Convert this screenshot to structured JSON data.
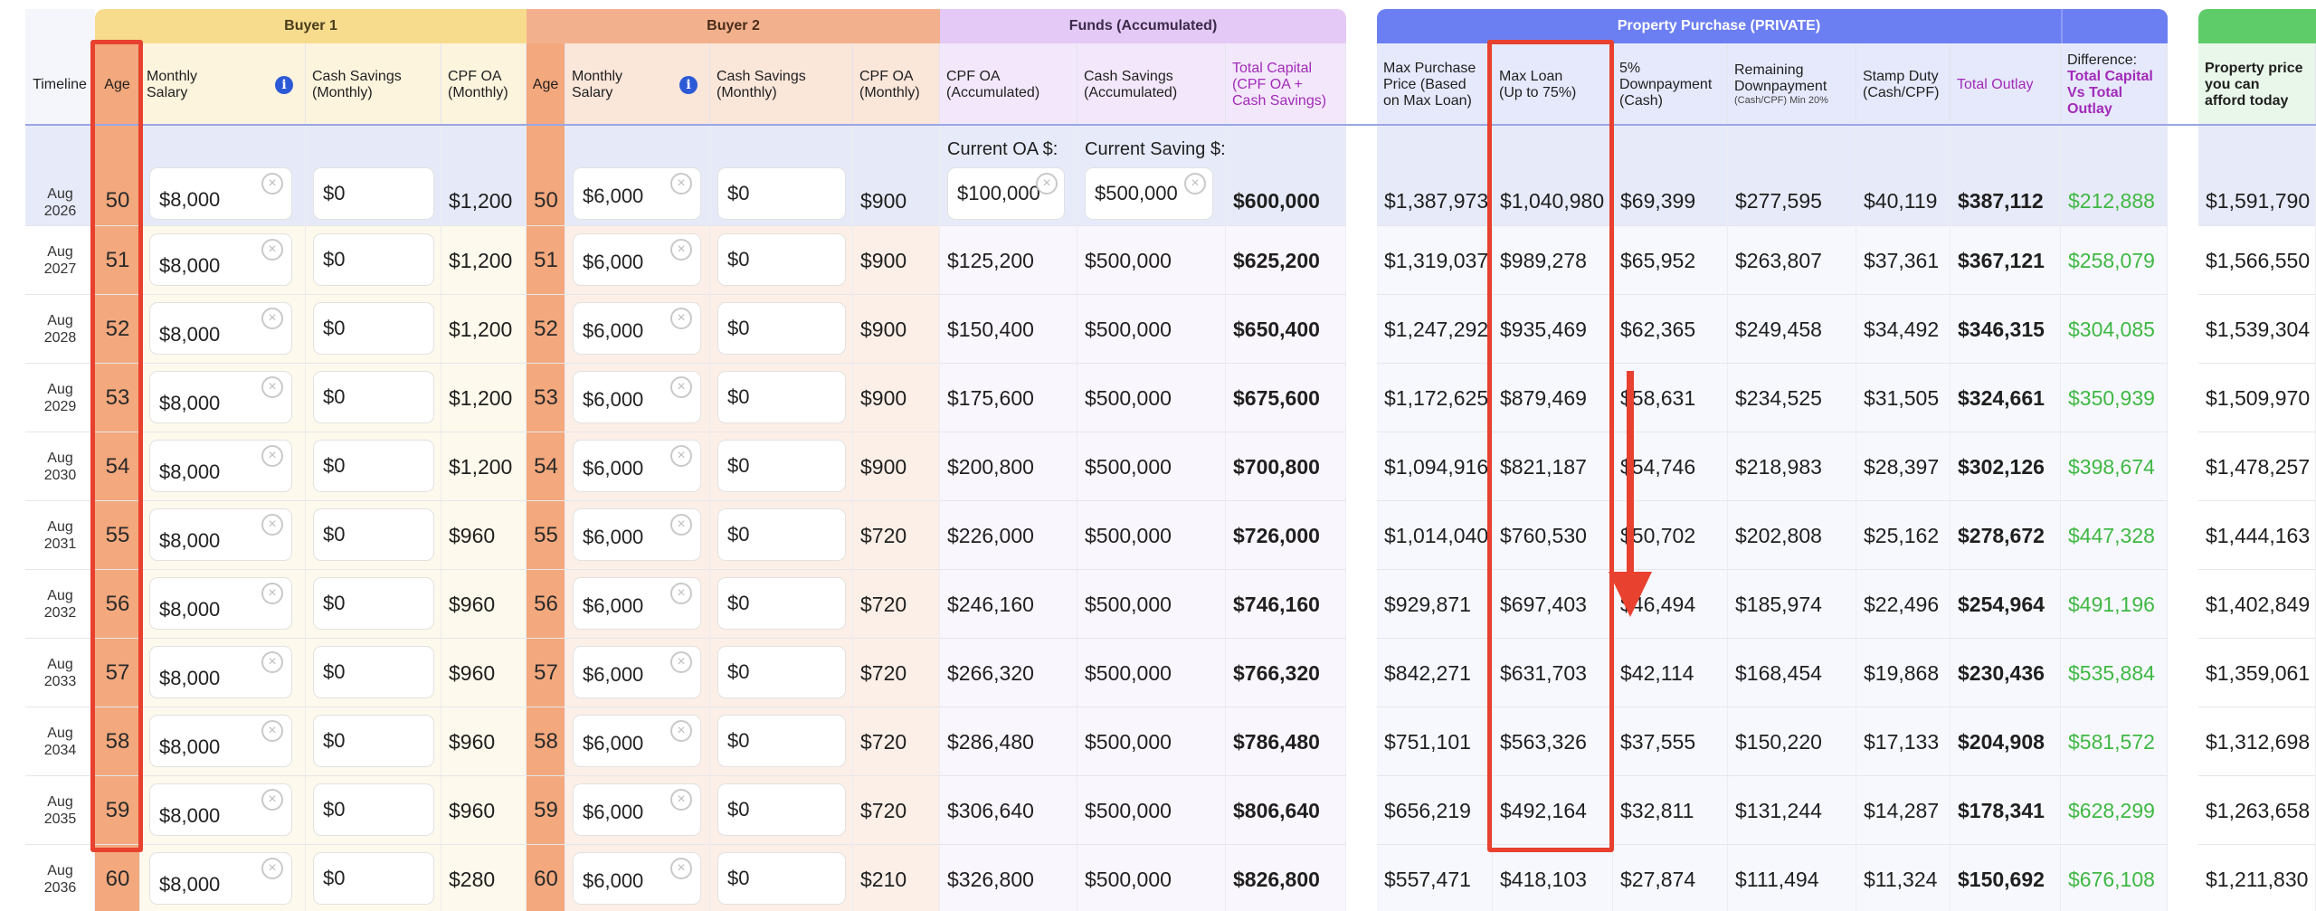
{
  "group_headers": {
    "buyer1": "Buyer 1",
    "buyer2": "Buyer 2",
    "funds": "Funds (Accumulated)",
    "property": "Property Purchase (PRIVATE)",
    "afford": ""
  },
  "column_headers": {
    "timeline": "Timeline",
    "age1": "Age",
    "salary1_a": "Monthly",
    "salary1_b": "Salary",
    "cash1_a": "Cash Savings",
    "cash1_b": "(Monthly)",
    "cpf1_a": "CPF OA",
    "cpf1_b": "(Monthly)",
    "age2": "Age",
    "salary2_a": "Monthly",
    "salary2_b": "Salary",
    "cash2_a": "Cash Savings",
    "cash2_b": "(Monthly)",
    "cpf2_a": "CPF OA",
    "cpf2_b": "(Monthly)",
    "cpfacc_a": "CPF OA",
    "cpfacc_b": "(Accumulated)",
    "cashacc_a": "Cash Savings",
    "cashacc_b": "(Accumulated)",
    "total_a": "Total Capital",
    "total_b": "(CPF OA +",
    "total_c": "Cash Savings)",
    "maxprice_a": "Max Purchase",
    "maxprice_b": "Price (Based",
    "maxprice_c": "on Max Loan)",
    "maxloan_a": "Max Loan",
    "maxloan_b": "(Up to 75%)",
    "down5_a": "5%",
    "down5_b": "Downpayment",
    "down5_c": "(Cash)",
    "remdown_a": "Remaining",
    "remdown_b": "Downpayment",
    "remdown_c": "(Cash/CPF) Min 20%",
    "stamp_a": "Stamp Duty",
    "stamp_b": "(Cash/CPF)",
    "outlay": "Total Outlay",
    "diff_a": "Difference:",
    "diff_b": "Total Capital",
    "diff_c": "Vs Total",
    "diff_d": "Outlay",
    "afford_a": "Property price",
    "afford_b": "you can",
    "afford_c": "afford today"
  },
  "captions": {
    "current_oa": "Current OA $:",
    "current_saving": "Current Saving $:"
  },
  "rows": [
    {
      "month": "Aug",
      "year": "2026",
      "age1": "50",
      "salary1": "$8,000",
      "cash1": "$0",
      "cpf1": "$1,200",
      "age2": "50",
      "salary2": "$6,000",
      "cash2": "$0",
      "cpf2": "$900",
      "cpfacc": "$100,000",
      "cashacc": "$500,000",
      "total": "$600,000",
      "maxprice": "$1,387,973",
      "maxloan": "$1,040,980",
      "down5": "$69,399",
      "remdown": "$277,595",
      "stamp": "$40,119",
      "outlay": "$387,112",
      "diff": "$212,888",
      "afford": "$1,591,790"
    },
    {
      "month": "Aug",
      "year": "2027",
      "age1": "51",
      "salary1": "$8,000",
      "cash1": "$0",
      "cpf1": "$1,200",
      "age2": "51",
      "salary2": "$6,000",
      "cash2": "$0",
      "cpf2": "$900",
      "cpfacc": "$125,200",
      "cashacc": "$500,000",
      "total": "$625,200",
      "maxprice": "$1,319,037",
      "maxloan": "$989,278",
      "down5": "$65,952",
      "remdown": "$263,807",
      "stamp": "$37,361",
      "outlay": "$367,121",
      "diff": "$258,079",
      "afford": "$1,566,550"
    },
    {
      "month": "Aug",
      "year": "2028",
      "age1": "52",
      "salary1": "$8,000",
      "cash1": "$0",
      "cpf1": "$1,200",
      "age2": "52",
      "salary2": "$6,000",
      "cash2": "$0",
      "cpf2": "$900",
      "cpfacc": "$150,400",
      "cashacc": "$500,000",
      "total": "$650,400",
      "maxprice": "$1,247,292",
      "maxloan": "$935,469",
      "down5": "$62,365",
      "remdown": "$249,458",
      "stamp": "$34,492",
      "outlay": "$346,315",
      "diff": "$304,085",
      "afford": "$1,539,304"
    },
    {
      "month": "Aug",
      "year": "2029",
      "age1": "53",
      "salary1": "$8,000",
      "cash1": "$0",
      "cpf1": "$1,200",
      "age2": "53",
      "salary2": "$6,000",
      "cash2": "$0",
      "cpf2": "$900",
      "cpfacc": "$175,600",
      "cashacc": "$500,000",
      "total": "$675,600",
      "maxprice": "$1,172,625",
      "maxloan": "$879,469",
      "down5": "$58,631",
      "remdown": "$234,525",
      "stamp": "$31,505",
      "outlay": "$324,661",
      "diff": "$350,939",
      "afford": "$1,509,970"
    },
    {
      "month": "Aug",
      "year": "2030",
      "age1": "54",
      "salary1": "$8,000",
      "cash1": "$0",
      "cpf1": "$1,200",
      "age2": "54",
      "salary2": "$6,000",
      "cash2": "$0",
      "cpf2": "$900",
      "cpfacc": "$200,800",
      "cashacc": "$500,000",
      "total": "$700,800",
      "maxprice": "$1,094,916",
      "maxloan": "$821,187",
      "down5": "$54,746",
      "remdown": "$218,983",
      "stamp": "$28,397",
      "outlay": "$302,126",
      "diff": "$398,674",
      "afford": "$1,478,257"
    },
    {
      "month": "Aug",
      "year": "2031",
      "age1": "55",
      "salary1": "$8,000",
      "cash1": "$0",
      "cpf1": "$960",
      "age2": "55",
      "salary2": "$6,000",
      "cash2": "$0",
      "cpf2": "$720",
      "cpfacc": "$226,000",
      "cashacc": "$500,000",
      "total": "$726,000",
      "maxprice": "$1,014,040",
      "maxloan": "$760,530",
      "down5": "$50,702",
      "remdown": "$202,808",
      "stamp": "$25,162",
      "outlay": "$278,672",
      "diff": "$447,328",
      "afford": "$1,444,163"
    },
    {
      "month": "Aug",
      "year": "2032",
      "age1": "56",
      "salary1": "$8,000",
      "cash1": "$0",
      "cpf1": "$960",
      "age2": "56",
      "salary2": "$6,000",
      "cash2": "$0",
      "cpf2": "$720",
      "cpfacc": "$246,160",
      "cashacc": "$500,000",
      "total": "$746,160",
      "maxprice": "$929,871",
      "maxloan": "$697,403",
      "down5": "$46,494",
      "remdown": "$185,974",
      "stamp": "$22,496",
      "outlay": "$254,964",
      "diff": "$491,196",
      "afford": "$1,402,849"
    },
    {
      "month": "Aug",
      "year": "2033",
      "age1": "57",
      "salary1": "$8,000",
      "cash1": "$0",
      "cpf1": "$960",
      "age2": "57",
      "salary2": "$6,000",
      "cash2": "$0",
      "cpf2": "$720",
      "cpfacc": "$266,320",
      "cashacc": "$500,000",
      "total": "$766,320",
      "maxprice": "$842,271",
      "maxloan": "$631,703",
      "down5": "$42,114",
      "remdown": "$168,454",
      "stamp": "$19,868",
      "outlay": "$230,436",
      "diff": "$535,884",
      "afford": "$1,359,061"
    },
    {
      "month": "Aug",
      "year": "2034",
      "age1": "58",
      "salary1": "$8,000",
      "cash1": "$0",
      "cpf1": "$960",
      "age2": "58",
      "salary2": "$6,000",
      "cash2": "$0",
      "cpf2": "$720",
      "cpfacc": "$286,480",
      "cashacc": "$500,000",
      "total": "$786,480",
      "maxprice": "$751,101",
      "maxloan": "$563,326",
      "down5": "$37,555",
      "remdown": "$150,220",
      "stamp": "$17,133",
      "outlay": "$204,908",
      "diff": "$581,572",
      "afford": "$1,312,698"
    },
    {
      "month": "Aug",
      "year": "2035",
      "age1": "59",
      "salary1": "$8,000",
      "cash1": "$0",
      "cpf1": "$960",
      "age2": "59",
      "salary2": "$6,000",
      "cash2": "$0",
      "cpf2": "$720",
      "cpfacc": "$306,640",
      "cashacc": "$500,000",
      "total": "$806,640",
      "maxprice": "$656,219",
      "maxloan": "$492,164",
      "down5": "$32,811",
      "remdown": "$131,244",
      "stamp": "$14,287",
      "outlay": "$178,341",
      "diff": "$628,299",
      "afford": "$1,263,658"
    },
    {
      "month": "Aug",
      "year": "2036",
      "age1": "60",
      "salary1": "$8,000",
      "cash1": "$0",
      "cpf1": "$280",
      "age2": "60",
      "salary2": "$6,000",
      "cash2": "$0",
      "cpf2": "$210",
      "cpfacc": "$326,800",
      "cashacc": "$500,000",
      "total": "$826,800",
      "maxprice": "$557,471",
      "maxloan": "$418,103",
      "down5": "$27,874",
      "remdown": "$111,494",
      "stamp": "$11,324",
      "outlay": "$150,692",
      "diff": "$676,108",
      "afford": "$1,211,830"
    }
  ],
  "colors": {
    "buyer1_group": "#f7dc8e",
    "buyer2_group": "#f2b18c",
    "funds_group": "#e4c9f6",
    "property_group": "#6c7ff2",
    "afford_group": "#5fcc6a",
    "age_column": "#f3a87d",
    "highlight_red": "#e8412f",
    "diff_green": "#3fb843",
    "total_purple": "#a22ab8"
  },
  "icons": {
    "info": "info-icon",
    "clear": "clear-input-icon",
    "arrow": "down-arrow-annotation"
  }
}
